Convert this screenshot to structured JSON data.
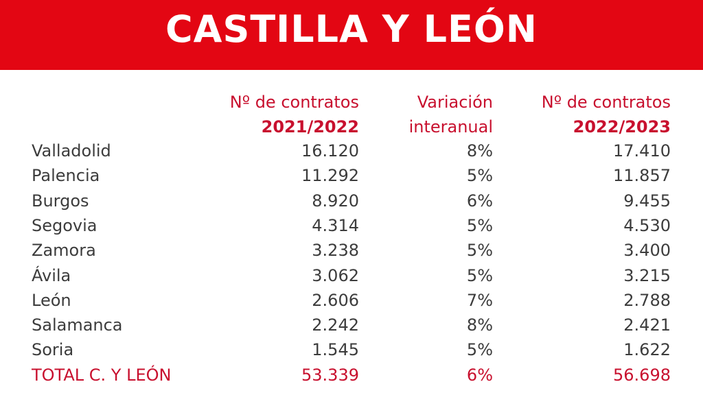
{
  "title": "CASTILLA Y LEÓN",
  "colors": {
    "brand_red": "#e30613",
    "header_text": "#c8102e",
    "body_text": "#3c3c3c"
  },
  "chart_data": {
    "type": "table",
    "columns": [
      {
        "line1": "",
        "line2": ""
      },
      {
        "line1": "Nº de contratos",
        "line2": "2021/2022"
      },
      {
        "line1": "Variación",
        "line2": "interanual"
      },
      {
        "line1": "Nº de contratos",
        "line2": "2022/2023"
      }
    ],
    "rows": [
      [
        "Valladolid",
        "16.120",
        "8%",
        "17.410"
      ],
      [
        "Palencia",
        "11.292",
        "5%",
        "11.857"
      ],
      [
        "Burgos",
        "8.920",
        "6%",
        "9.455"
      ],
      [
        "Segovia",
        "4.314",
        "5%",
        "4.530"
      ],
      [
        "Zamora",
        "3.238",
        "5%",
        "3.400"
      ],
      [
        "Ávila",
        "3.062",
        "5%",
        "3.215"
      ],
      [
        "León",
        "2.606",
        "7%",
        "2.788"
      ],
      [
        "Salamanca",
        "2.242",
        "8%",
        "2.421"
      ],
      [
        "Soria",
        "1.545",
        "5%",
        "1.622"
      ]
    ],
    "total": [
      "TOTAL C. Y LEÓN",
      "53.339",
      "6%",
      "56.698"
    ]
  }
}
